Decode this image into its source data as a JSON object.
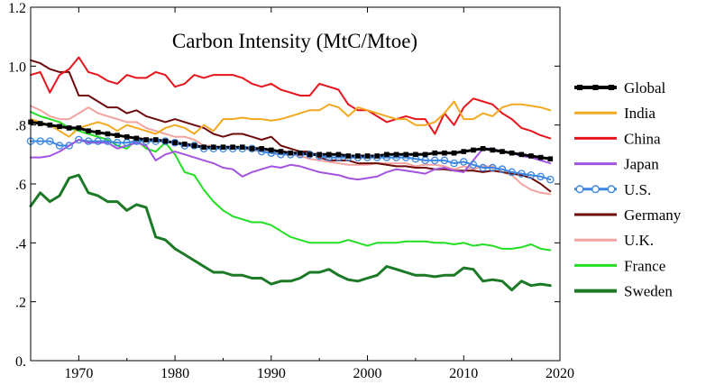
{
  "chart_data": {
    "type": "line",
    "title": "Carbon Intensity (MtC/Mtoe)",
    "xlabel": "",
    "ylabel": "",
    "xlim": [
      1965,
      2020
    ],
    "ylim": [
      0,
      1.2
    ],
    "x_ticks": [
      1970,
      1980,
      1990,
      2000,
      2010,
      2020
    ],
    "y_ticks": [
      {
        "value": 0,
        "label": "0."
      },
      {
        "value": 0.2,
        "label": ".2"
      },
      {
        "value": 0.4,
        "label": ".4"
      },
      {
        "value": 0.6,
        "label": ".6"
      },
      {
        "value": 0.8,
        "label": ".8"
      },
      {
        "value": 1.0,
        "label": "1.0"
      },
      {
        "value": 1.2,
        "label": "1.2"
      }
    ],
    "grid": false,
    "legend_position": "right",
    "x": [
      1965,
      1966,
      1967,
      1968,
      1969,
      1970,
      1971,
      1972,
      1973,
      1974,
      1975,
      1976,
      1977,
      1978,
      1979,
      1980,
      1981,
      1982,
      1983,
      1984,
      1985,
      1986,
      1987,
      1988,
      1989,
      1990,
      1991,
      1992,
      1993,
      1994,
      1995,
      1996,
      1997,
      1998,
      1999,
      2000,
      2001,
      2002,
      2003,
      2004,
      2005,
      2006,
      2007,
      2008,
      2009,
      2010,
      2011,
      2012,
      2013,
      2014,
      2015,
      2016,
      2017,
      2018,
      2019
    ],
    "series": [
      {
        "name": "Global",
        "color": "#000000",
        "marker": "square",
        "width": 3,
        "values": [
          0.81,
          0.805,
          0.8,
          0.795,
          0.79,
          0.79,
          0.78,
          0.775,
          0.77,
          0.765,
          0.76,
          0.755,
          0.75,
          0.75,
          0.745,
          0.74,
          0.735,
          0.73,
          0.725,
          0.725,
          0.725,
          0.725,
          0.725,
          0.72,
          0.72,
          0.715,
          0.71,
          0.705,
          0.705,
          0.7,
          0.7,
          0.7,
          0.7,
          0.695,
          0.695,
          0.695,
          0.695,
          0.7,
          0.7,
          0.7,
          0.7,
          0.7,
          0.705,
          0.705,
          0.705,
          0.71,
          0.715,
          0.72,
          0.715,
          0.71,
          0.705,
          0.7,
          0.695,
          0.69,
          0.685
        ]
      },
      {
        "name": "India",
        "color": "#f4a81f",
        "marker": "none",
        "width": 2,
        "values": [
          0.82,
          0.81,
          0.8,
          0.78,
          0.76,
          0.79,
          0.8,
          0.81,
          0.8,
          0.78,
          0.8,
          0.79,
          0.78,
          0.77,
          0.79,
          0.8,
          0.79,
          0.77,
          0.8,
          0.78,
          0.82,
          0.82,
          0.825,
          0.82,
          0.82,
          0.815,
          0.82,
          0.83,
          0.84,
          0.85,
          0.85,
          0.87,
          0.86,
          0.83,
          0.86,
          0.85,
          0.84,
          0.83,
          0.82,
          0.82,
          0.8,
          0.8,
          0.81,
          0.84,
          0.88,
          0.82,
          0.82,
          0.84,
          0.83,
          0.86,
          0.87,
          0.87,
          0.865,
          0.86,
          0.85
        ]
      },
      {
        "name": "China",
        "color": "#e8141c",
        "marker": "none",
        "width": 2,
        "values": [
          0.97,
          0.98,
          0.91,
          0.97,
          0.99,
          1.03,
          0.98,
          0.97,
          0.95,
          0.94,
          0.97,
          0.96,
          0.96,
          0.98,
          0.97,
          0.93,
          0.94,
          0.97,
          0.96,
          0.97,
          0.97,
          0.97,
          0.96,
          0.94,
          0.93,
          0.94,
          0.92,
          0.91,
          0.9,
          0.9,
          0.94,
          0.93,
          0.92,
          0.87,
          0.85,
          0.85,
          0.83,
          0.81,
          0.82,
          0.83,
          0.82,
          0.82,
          0.77,
          0.84,
          0.8,
          0.86,
          0.89,
          0.88,
          0.87,
          0.84,
          0.82,
          0.79,
          0.78,
          0.765,
          0.755
        ]
      },
      {
        "name": "Japan",
        "color": "#a353e0",
        "marker": "none",
        "width": 2,
        "values": [
          0.69,
          0.69,
          0.695,
          0.71,
          0.73,
          0.75,
          0.74,
          0.74,
          0.74,
          0.72,
          0.73,
          0.74,
          0.73,
          0.68,
          0.7,
          0.71,
          0.7,
          0.69,
          0.68,
          0.67,
          0.655,
          0.65,
          0.625,
          0.64,
          0.65,
          0.66,
          0.655,
          0.665,
          0.66,
          0.65,
          0.64,
          0.635,
          0.63,
          0.62,
          0.615,
          0.62,
          0.625,
          0.64,
          0.65,
          0.645,
          0.64,
          0.635,
          0.65,
          0.655,
          0.645,
          0.64,
          0.68,
          0.72,
          0.72,
          0.71,
          0.705,
          0.695,
          0.69,
          0.68,
          0.67
        ]
      },
      {
        "name": "U.S.",
        "color": "#3a86e0",
        "marker": "circle",
        "width": 2,
        "values": [
          0.745,
          0.745,
          0.745,
          0.73,
          0.73,
          0.75,
          0.745,
          0.745,
          0.745,
          0.74,
          0.74,
          0.745,
          0.745,
          0.745,
          0.745,
          0.74,
          0.73,
          0.73,
          0.72,
          0.72,
          0.72,
          0.72,
          0.72,
          0.72,
          0.71,
          0.705,
          0.7,
          0.7,
          0.7,
          0.7,
          0.695,
          0.69,
          0.69,
          0.69,
          0.69,
          0.69,
          0.69,
          0.69,
          0.69,
          0.69,
          0.685,
          0.68,
          0.68,
          0.68,
          0.67,
          0.675,
          0.665,
          0.655,
          0.655,
          0.65,
          0.64,
          0.635,
          0.63,
          0.625,
          0.615
        ]
      },
      {
        "name": "Germany",
        "color": "#6e0a0a",
        "marker": "none",
        "width": 2,
        "values": [
          1.02,
          1.01,
          0.99,
          0.98,
          0.98,
          0.9,
          0.9,
          0.88,
          0.86,
          0.86,
          0.84,
          0.85,
          0.83,
          0.82,
          0.81,
          0.82,
          0.81,
          0.8,
          0.79,
          0.77,
          0.76,
          0.77,
          0.77,
          0.76,
          0.75,
          0.76,
          0.73,
          0.72,
          0.71,
          0.71,
          0.69,
          0.68,
          0.68,
          0.68,
          0.67,
          0.67,
          0.67,
          0.665,
          0.66,
          0.66,
          0.655,
          0.655,
          0.65,
          0.65,
          0.645,
          0.645,
          0.645,
          0.64,
          0.645,
          0.64,
          0.635,
          0.63,
          0.62,
          0.6,
          0.575
        ]
      },
      {
        "name": "U.K.",
        "color": "#f3a4a0",
        "marker": "none",
        "width": 2,
        "values": [
          0.865,
          0.85,
          0.83,
          0.82,
          0.82,
          0.84,
          0.86,
          0.84,
          0.83,
          0.82,
          0.81,
          0.81,
          0.79,
          0.78,
          0.77,
          0.76,
          0.76,
          0.75,
          0.73,
          0.73,
          0.72,
          0.72,
          0.72,
          0.715,
          0.71,
          0.71,
          0.7,
          0.7,
          0.695,
          0.685,
          0.68,
          0.675,
          0.67,
          0.665,
          0.665,
          0.665,
          0.67,
          0.67,
          0.67,
          0.67,
          0.66,
          0.665,
          0.665,
          0.66,
          0.65,
          0.66,
          0.65,
          0.66,
          0.66,
          0.64,
          0.63,
          0.6,
          0.58,
          0.57,
          0.565
        ]
      },
      {
        "name": "France",
        "color": "#22de22",
        "marker": "none",
        "width": 2,
        "values": [
          0.845,
          0.83,
          0.82,
          0.81,
          0.79,
          0.78,
          0.77,
          0.76,
          0.75,
          0.73,
          0.72,
          0.75,
          0.72,
          0.71,
          0.74,
          0.7,
          0.64,
          0.63,
          0.58,
          0.54,
          0.51,
          0.49,
          0.48,
          0.47,
          0.47,
          0.46,
          0.44,
          0.42,
          0.41,
          0.4,
          0.4,
          0.4,
          0.4,
          0.41,
          0.4,
          0.39,
          0.4,
          0.4,
          0.4,
          0.405,
          0.405,
          0.405,
          0.4,
          0.4,
          0.395,
          0.4,
          0.39,
          0.395,
          0.39,
          0.38,
          0.38,
          0.385,
          0.395,
          0.38,
          0.375
        ]
      },
      {
        "name": "Sweden",
        "color": "#1c7a26",
        "marker": "none",
        "width": 3,
        "values": [
          0.525,
          0.57,
          0.54,
          0.56,
          0.62,
          0.63,
          0.57,
          0.56,
          0.54,
          0.54,
          0.51,
          0.53,
          0.52,
          0.42,
          0.41,
          0.38,
          0.36,
          0.34,
          0.32,
          0.3,
          0.3,
          0.29,
          0.29,
          0.28,
          0.28,
          0.26,
          0.27,
          0.27,
          0.28,
          0.3,
          0.3,
          0.31,
          0.29,
          0.275,
          0.27,
          0.28,
          0.29,
          0.32,
          0.31,
          0.3,
          0.29,
          0.29,
          0.285,
          0.29,
          0.29,
          0.315,
          0.31,
          0.27,
          0.275,
          0.27,
          0.24,
          0.27,
          0.255,
          0.26,
          0.255
        ]
      }
    ]
  }
}
